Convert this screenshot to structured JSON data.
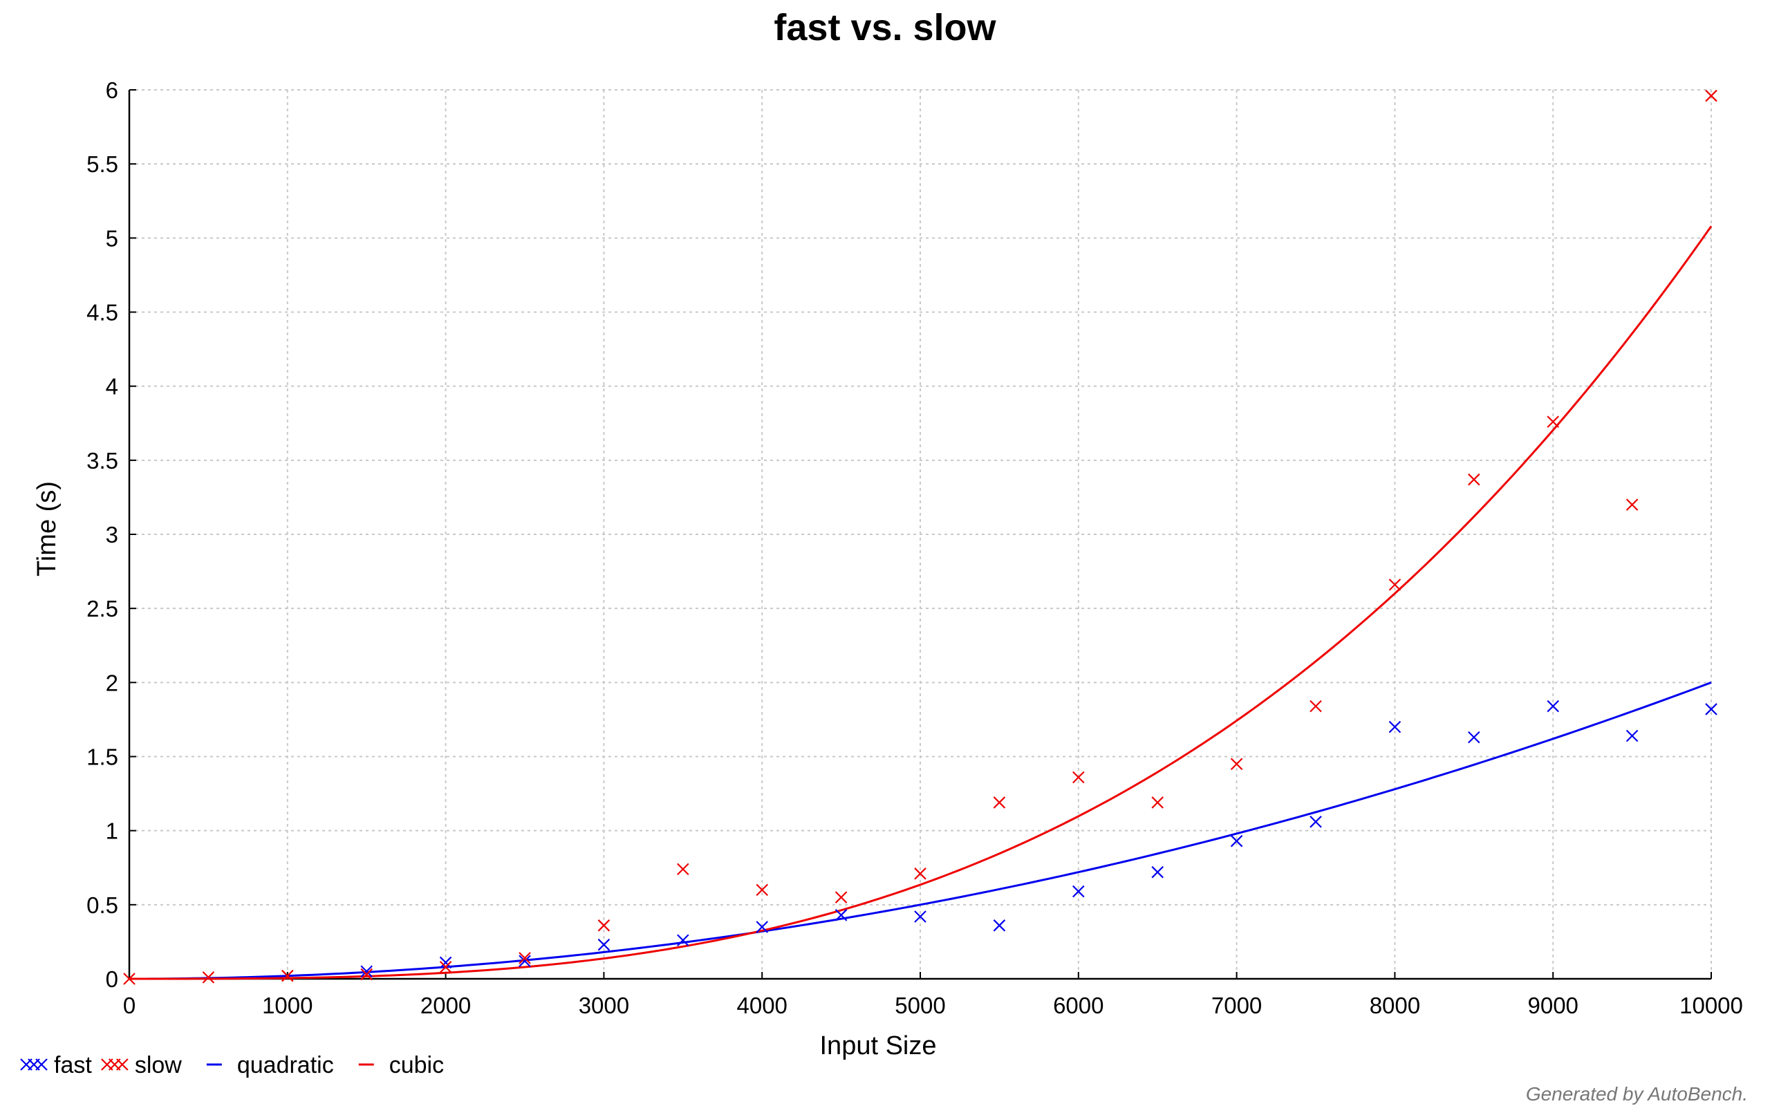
{
  "chart_data": {
    "type": "scatter",
    "title": "fast vs. slow",
    "xlabel": "Input Size",
    "ylabel": "Time (s)",
    "xlim": [
      0,
      10000
    ],
    "ylim": [
      0,
      6
    ],
    "xticks": [
      "0",
      "1000",
      "2000",
      "3000",
      "4000",
      "5000",
      "6000",
      "7000",
      "8000",
      "9000",
      "10000"
    ],
    "yticks": [
      "0",
      "0.5",
      "1",
      "1.5",
      "2",
      "2.5",
      "3",
      "3.5",
      "4",
      "4.5",
      "5",
      "5.5",
      "6"
    ],
    "grid": true,
    "legend_position": "bottom-left",
    "series": [
      {
        "name": "fast",
        "kind": "scatter",
        "marker": "x",
        "color": "#0000ee",
        "x": [
          1500,
          2000,
          2500,
          3000,
          3500,
          4000,
          4500,
          5000,
          5500,
          6000,
          6500,
          7000,
          7500,
          8000,
          8500,
          9000,
          9500,
          10000
        ],
        "y": [
          0.05,
          0.11,
          0.12,
          0.23,
          0.26,
          0.35,
          0.43,
          0.42,
          0.36,
          0.59,
          0.72,
          0.93,
          1.06,
          1.7,
          1.63,
          1.84,
          1.64,
          1.82
        ]
      },
      {
        "name": "slow",
        "kind": "scatter",
        "marker": "x",
        "color": "#ee0000",
        "x": [
          0,
          500,
          1000,
          1500,
          2000,
          2500,
          3000,
          3500,
          4000,
          4500,
          5000,
          5500,
          6000,
          6500,
          7000,
          7500,
          8000,
          8500,
          9000,
          9500,
          10000
        ],
        "y": [
          0.0,
          0.01,
          0.02,
          0.03,
          0.08,
          0.14,
          0.36,
          0.74,
          0.6,
          0.55,
          0.71,
          1.19,
          1.36,
          1.19,
          1.45,
          1.84,
          2.66,
          3.37,
          3.76,
          3.2,
          5.96
        ]
      },
      {
        "name": "quadratic",
        "kind": "line",
        "color": "#0000ee",
        "coef": 2e-08,
        "power": 2
      },
      {
        "name": "cubic",
        "kind": "line",
        "color": "#ee0000",
        "coef": 5.08e-12,
        "power": 3
      }
    ]
  },
  "footer": {
    "credit": "Generated by AutoBench."
  }
}
